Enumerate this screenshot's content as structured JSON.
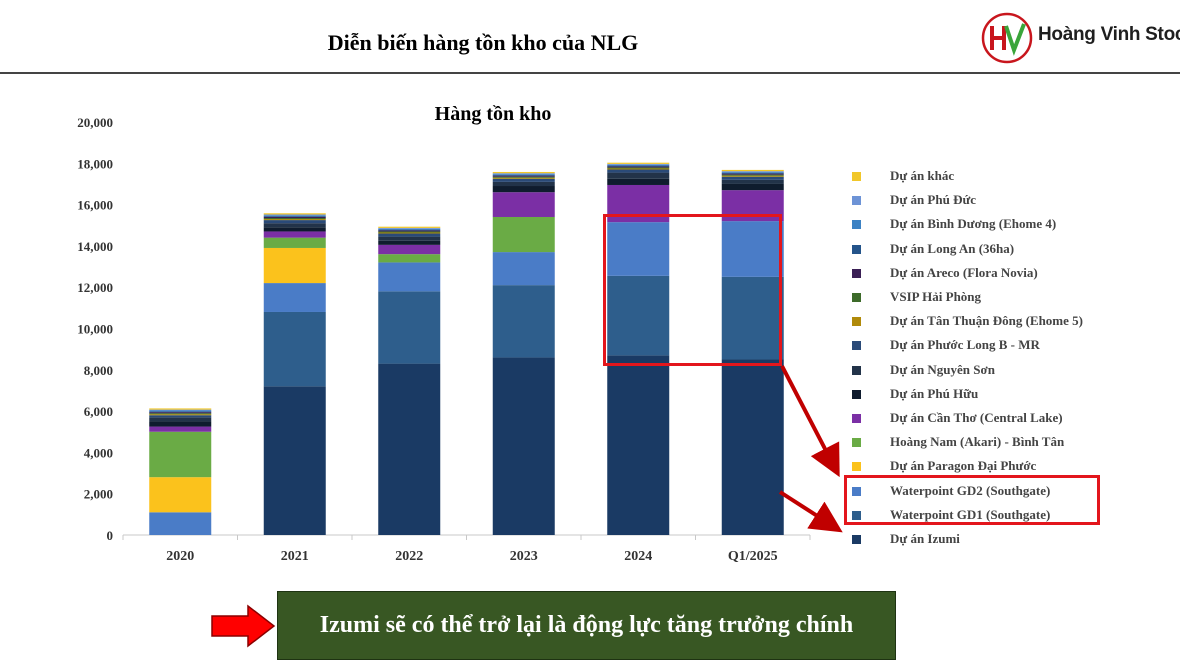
{
  "page_title": "Diễn biến hàng tồn kho của NLG",
  "logo": {
    "text": "Hoàng Vinh Stock",
    "icon": "hv-logo-icon"
  },
  "callout": {
    "text": "Izumi sẽ có thể trở lại là động lực tăng trưởng chính",
    "icon": "red-arrow-icon"
  },
  "colors": {
    "highlight": "#e3161c",
    "callout_bg": "#385723"
  },
  "chart_data": {
    "type": "bar",
    "stacked": true,
    "title": "Hàng tồn kho",
    "xlabel": "",
    "ylabel": "",
    "ylim": [
      0,
      20000
    ],
    "yticks": [
      "0",
      "2,000",
      "4,000",
      "6,000",
      "8,000",
      "10,000",
      "12,000",
      "14,000",
      "16,000",
      "18,000",
      "20,000"
    ],
    "grid": false,
    "legend_position": "right",
    "categories": [
      "2020",
      "2021",
      "2022",
      "2023",
      "2024",
      "Q1/2025"
    ],
    "series": [
      {
        "name": "Dự án Izumi",
        "color": "#1a3a64",
        "values": [
          0,
          7200,
          8300,
          8600,
          8700,
          8500
        ]
      },
      {
        "name": "Waterpoint GD1 (Southgate)",
        "color": "#2e5e8c",
        "values": [
          0,
          3600,
          3500,
          3500,
          3850,
          4000
        ]
      },
      {
        "name": "Waterpoint GD2 (Southgate)",
        "color": "#4a7cc7",
        "values": [
          1100,
          1400,
          1400,
          1600,
          2600,
          2700
        ]
      },
      {
        "name": "Dự án Paragon Đại Phước",
        "color": "#fbc21c",
        "values": [
          1700,
          1700,
          0,
          0,
          0,
          0
        ]
      },
      {
        "name": "Hoàng Nam (Akari) - Bình Tân",
        "color": "#6aab45",
        "values": [
          2200,
          500,
          400,
          1700,
          0,
          0
        ]
      },
      {
        "name": "Dự án Cần Thơ (Central Lake)",
        "color": "#7b2fa5",
        "values": [
          250,
          300,
          450,
          1200,
          1800,
          1500
        ]
      },
      {
        "name": "Dự án Phú Hữu",
        "color": "#0f1c2e",
        "values": [
          250,
          200,
          200,
          300,
          300,
          300
        ]
      },
      {
        "name": "Dự án Nguyên Sơn",
        "color": "#223349",
        "values": [
          200,
          200,
          200,
          200,
          300,
          200
        ]
      },
      {
        "name": "Dự án Phước Long B - MR",
        "color": "#2a4a78",
        "values": [
          100,
          150,
          150,
          150,
          150,
          150
        ]
      },
      {
        "name": "Dự án Tân Thuận Đông (Ehome 5)",
        "color": "#b08a0a",
        "values": [
          50,
          50,
          50,
          50,
          50,
          50
        ]
      },
      {
        "name": "VSIP Hải Phòng",
        "color": "#3d6b2a",
        "values": [
          50,
          50,
          50,
          50,
          50,
          50
        ]
      },
      {
        "name": "Dự án Areco (Flora Novia)",
        "color": "#3a1f55",
        "values": [
          50,
          50,
          50,
          50,
          50,
          50
        ]
      },
      {
        "name": "Dự án Long An (36ha)",
        "color": "#24548a",
        "values": [
          40,
          40,
          40,
          40,
          40,
          40
        ]
      },
      {
        "name": "Dự án Bình Dương (Ehome 4)",
        "color": "#3c82c4",
        "values": [
          40,
          40,
          40,
          40,
          40,
          40
        ]
      },
      {
        "name": "Dự án Phú Đức",
        "color": "#6d93d6",
        "values": [
          40,
          40,
          40,
          40,
          40,
          40
        ]
      },
      {
        "name": "Dự án khác",
        "color": "#f1c72a",
        "values": [
          60,
          60,
          60,
          60,
          60,
          60
        ]
      }
    ]
  }
}
